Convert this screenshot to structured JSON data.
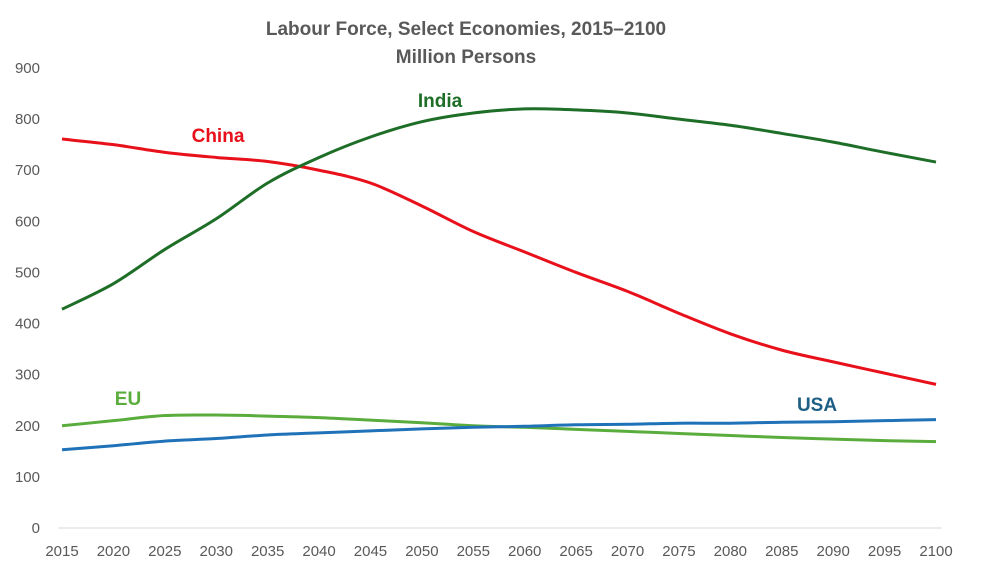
{
  "chart_data": {
    "type": "line",
    "title": "Labour Force, Select Economies, 2015–2100",
    "subtitle": "Million Persons",
    "xlabel": "",
    "ylabel": "",
    "ylim": [
      0,
      900
    ],
    "yticks": [
      "0",
      "100",
      "200",
      "300",
      "400",
      "500",
      "600",
      "700",
      "800",
      "900"
    ],
    "x": [
      2015,
      2020,
      2025,
      2030,
      2035,
      2040,
      2045,
      2050,
      2055,
      2060,
      2065,
      2070,
      2075,
      2080,
      2085,
      2090,
      2095,
      2100
    ],
    "xticks": [
      "2015",
      "2020",
      "2025",
      "2030",
      "2035",
      "2040",
      "2045",
      "2050",
      "2055",
      "2060",
      "2065",
      "2070",
      "2075",
      "2080",
      "2085",
      "2090",
      "2095",
      "2100"
    ],
    "grid": false,
    "legend": "inline labels",
    "series": [
      {
        "name": "China",
        "color": "#e8101a",
        "label_color": "#e8101a",
        "values": [
          761,
          750,
          735,
          725,
          717,
          700,
          675,
          630,
          580,
          540,
          500,
          463,
          420,
          380,
          348,
          325,
          303,
          281
        ]
      },
      {
        "name": "India",
        "color": "#1e6e28",
        "label_color": "#1e6e28",
        "values": [
          428,
          478,
          545,
          605,
          675,
          725,
          765,
          795,
          812,
          820,
          818,
          812,
          800,
          788,
          772,
          755,
          735,
          716
        ]
      },
      {
        "name": "EU",
        "color": "#5aac3c",
        "label_color": "#5aac3c",
        "values": [
          200,
          210,
          220,
          221,
          219,
          216,
          211,
          206,
          200,
          197,
          193,
          189,
          185,
          181,
          177,
          174,
          171,
          169
        ]
      },
      {
        "name": "USA",
        "color": "#1f72b8",
        "label_color": "#1f5f85",
        "values": [
          153,
          161,
          170,
          175,
          182,
          186,
          190,
          194,
          197,
          199,
          202,
          203,
          205,
          205,
          207,
          208,
          210,
          212
        ]
      }
    ]
  }
}
